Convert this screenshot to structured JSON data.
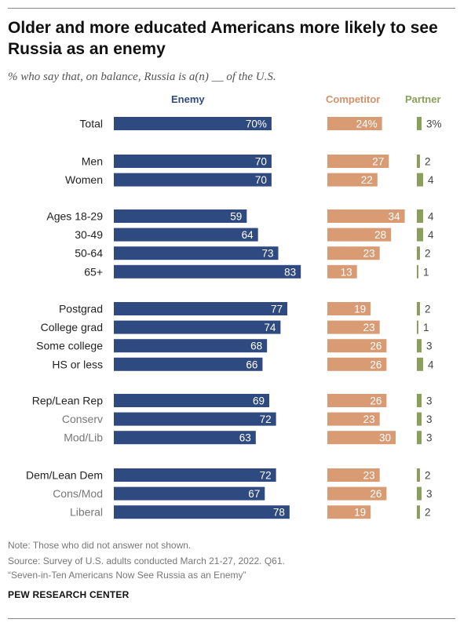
{
  "title": "Older and more educated Americans more likely to see Russia as an enemy",
  "subtitle": "% who say that, on balance, Russia is a(n) __ of the U.S.",
  "notes": {
    "note": "Note: Those who did not answer not shown.",
    "source": "Source: Survey of U.S. adults conducted March 21-27, 2022. Q61.",
    "report": "“Seven-in-Ten Americans Now See Russia as an Enemy”"
  },
  "brand": "PEW RESEARCH CENTER",
  "colors": {
    "enemy": "#2f4a80",
    "competitor": "#d89b74",
    "partner": "#8aa05a",
    "muted_label": "#777777"
  },
  "chart_data": {
    "type": "bar",
    "orientation": "horizontal",
    "categories": [
      "Total",
      "Men",
      "Women",
      "Ages 18-29",
      "30-49",
      "50-64",
      "65+",
      "Postgrad",
      "College grad",
      "Some college",
      "HS or less",
      "Rep/Lean Rep",
      "Conserv",
      "Mod/Lib",
      "Dem/Lean Dem",
      "Cons/Mod",
      "Liberal"
    ],
    "category_groups": [
      [
        "Total"
      ],
      [
        "Men",
        "Women"
      ],
      [
        "Ages 18-29",
        "30-49",
        "50-64",
        "65+"
      ],
      [
        "Postgrad",
        "College grad",
        "Some college",
        "HS or less"
      ],
      [
        "Rep/Lean Rep",
        "Conserv",
        "Mod/Lib"
      ],
      [
        "Dem/Lean Dem",
        "Cons/Mod",
        "Liberal"
      ]
    ],
    "subcategories": [
      "Conserv",
      "Mod/Lib",
      "Cons/Mod",
      "Liberal"
    ],
    "series": [
      {
        "name": "Enemy",
        "values": [
          70,
          70,
          70,
          59,
          64,
          73,
          83,
          77,
          74,
          68,
          66,
          69,
          72,
          63,
          72,
          67,
          78
        ]
      },
      {
        "name": "Competitor",
        "values": [
          24,
          27,
          22,
          34,
          28,
          23,
          13,
          19,
          23,
          26,
          26,
          26,
          23,
          30,
          23,
          26,
          19
        ]
      },
      {
        "name": "Partner",
        "values": [
          3,
          2,
          4,
          4,
          4,
          2,
          1,
          2,
          1,
          3,
          4,
          3,
          3,
          3,
          2,
          3,
          2
        ]
      }
    ],
    "value_labels_total": [
      "70%",
      "24%",
      "3%"
    ],
    "legend": "top"
  }
}
